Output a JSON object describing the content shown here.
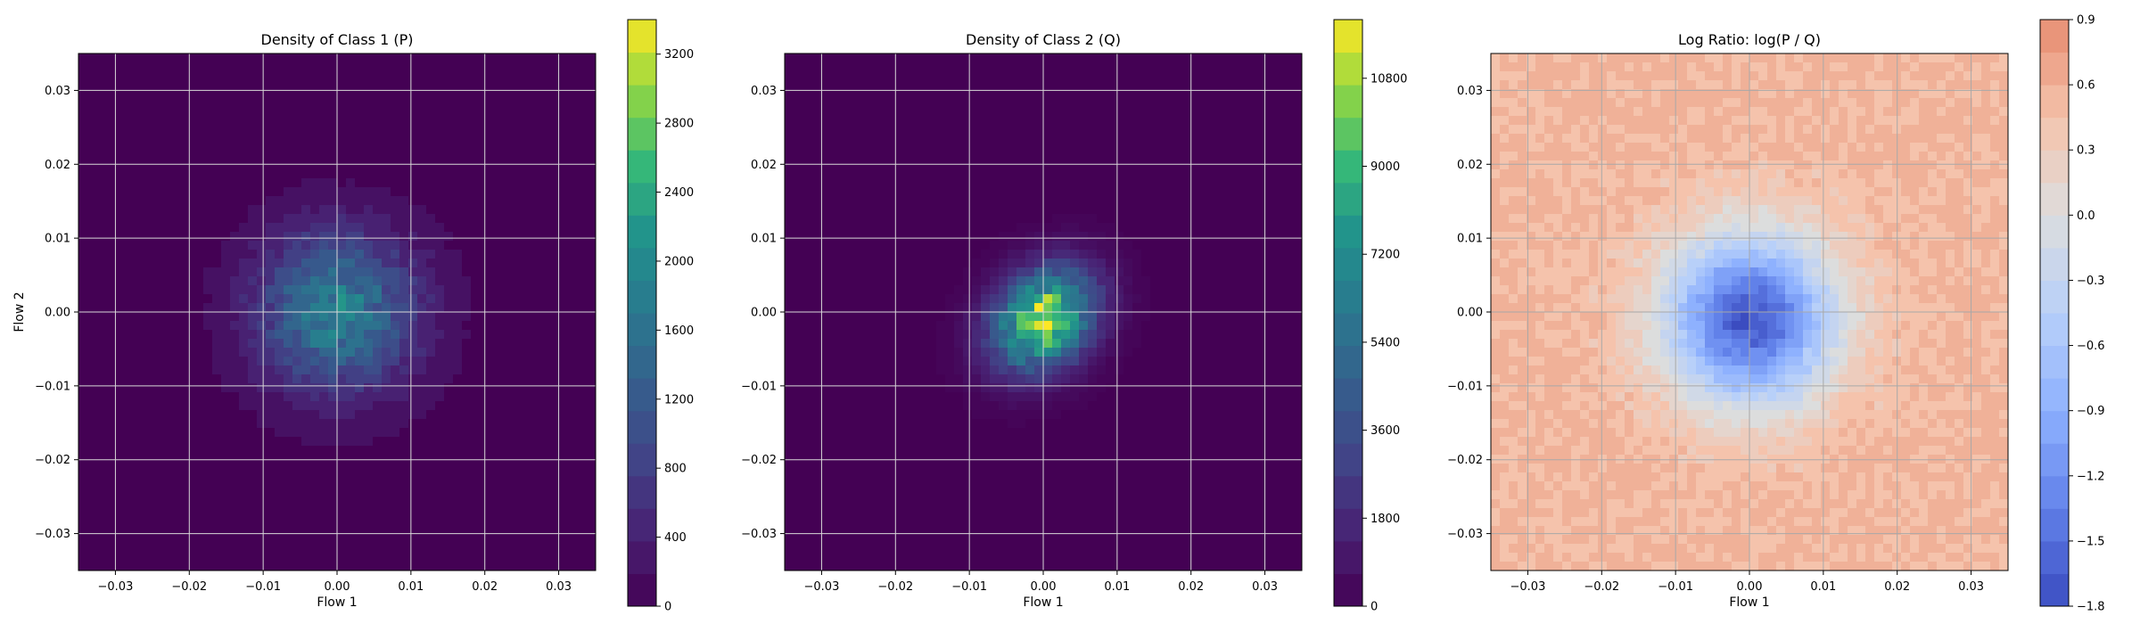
{
  "chart_data": [
    {
      "type": "heatmap",
      "title": "Density of Class 1 (P)",
      "xlabel": "Flow 1",
      "ylabel": "Flow 2",
      "xlim": [
        -0.035,
        0.035
      ],
      "ylim": [
        -0.035,
        0.035
      ],
      "x_ticks": [
        -0.03,
        -0.02,
        -0.01,
        0.0,
        0.01,
        0.02,
        0.03
      ],
      "y_ticks": [
        -0.03,
        -0.02,
        -0.01,
        0.0,
        0.01,
        0.02,
        0.03
      ],
      "x_tick_labels": [
        "−0.03",
        "−0.02",
        "−0.01",
        "0.00",
        "0.01",
        "0.02",
        "0.03"
      ],
      "y_tick_labels": [
        "−0.03",
        "−0.02",
        "−0.01",
        "0.00",
        "0.01",
        "0.02",
        "0.03"
      ],
      "grid": true,
      "colormap": "viridis",
      "colorbar": {
        "range": [
          0,
          3400
        ],
        "ticks": [
          0,
          400,
          800,
          1200,
          1600,
          2000,
          2400,
          2800,
          3200
        ],
        "tick_labels": [
          "0",
          "400",
          "800",
          "1200",
          "1600",
          "2000",
          "2400",
          "2800",
          "3200"
        ]
      },
      "distribution": {
        "center": [
          0.0,
          0.0
        ],
        "peak": 1800,
        "spread": 0.0075,
        "elongation": 0.0
      }
    },
    {
      "type": "heatmap",
      "title": "Density of Class 2 (Q)",
      "xlabel": "Flow 1",
      "ylabel": "",
      "xlim": [
        -0.035,
        0.035
      ],
      "ylim": [
        -0.035,
        0.035
      ],
      "x_ticks": [
        -0.03,
        -0.02,
        -0.01,
        0.0,
        0.01,
        0.02,
        0.03
      ],
      "y_ticks": [
        -0.03,
        -0.02,
        -0.01,
        0.0,
        0.01,
        0.02,
        0.03
      ],
      "x_tick_labels": [
        "−0.03",
        "−0.02",
        "−0.01",
        "0.00",
        "0.01",
        "0.02",
        "0.03"
      ],
      "y_tick_labels": [
        "−0.03",
        "−0.02",
        "−0.01",
        "0.00",
        "0.01",
        "0.02",
        "0.03"
      ],
      "grid": true,
      "colormap": "viridis",
      "colorbar": {
        "range": [
          0,
          12000
        ],
        "ticks": [
          0,
          1800,
          3600,
          5400,
          7200,
          9000,
          10800
        ],
        "tick_labels": [
          "0",
          "1800",
          "3600",
          "5400",
          "7200",
          "9000",
          "10800"
        ]
      },
      "distribution": {
        "center": [
          0.0,
          -0.001
        ],
        "peak": 11000,
        "spread": 0.0045,
        "elongation": -0.4
      }
    },
    {
      "type": "heatmap",
      "title": "Log Ratio: log(P / Q)",
      "xlabel": "Flow 1",
      "ylabel": "",
      "xlim": [
        -0.035,
        0.035
      ],
      "ylim": [
        -0.035,
        0.035
      ],
      "x_ticks": [
        -0.03,
        -0.02,
        -0.01,
        0.0,
        0.01,
        0.02,
        0.03
      ],
      "y_ticks": [
        -0.03,
        -0.02,
        -0.01,
        0.0,
        0.01,
        0.02,
        0.03
      ],
      "x_tick_labels": [
        "−0.03",
        "−0.02",
        "−0.01",
        "0.00",
        "0.01",
        "0.02",
        "0.03"
      ],
      "y_tick_labels": [
        "−0.03",
        "−0.02",
        "−0.01",
        "0.00",
        "0.01",
        "0.02",
        "0.03"
      ],
      "grid": true,
      "colormap": "coolwarm",
      "colorbar": {
        "range": [
          -1.8,
          0.9
        ],
        "ticks": [
          -1.8,
          -1.5,
          -1.2,
          -0.9,
          -0.6,
          -0.3,
          0.0,
          0.3,
          0.6,
          0.9
        ],
        "tick_labels": [
          "−1.8",
          "−1.5",
          "−1.2",
          "−0.9",
          "−0.6",
          "−0.3",
          "0.0",
          "0.3",
          "0.6",
          "0.9"
        ]
      },
      "distribution": {
        "center": [
          0.0,
          -0.001
        ],
        "min": -1.7,
        "background": 0.55,
        "spread": 0.008
      }
    }
  ]
}
